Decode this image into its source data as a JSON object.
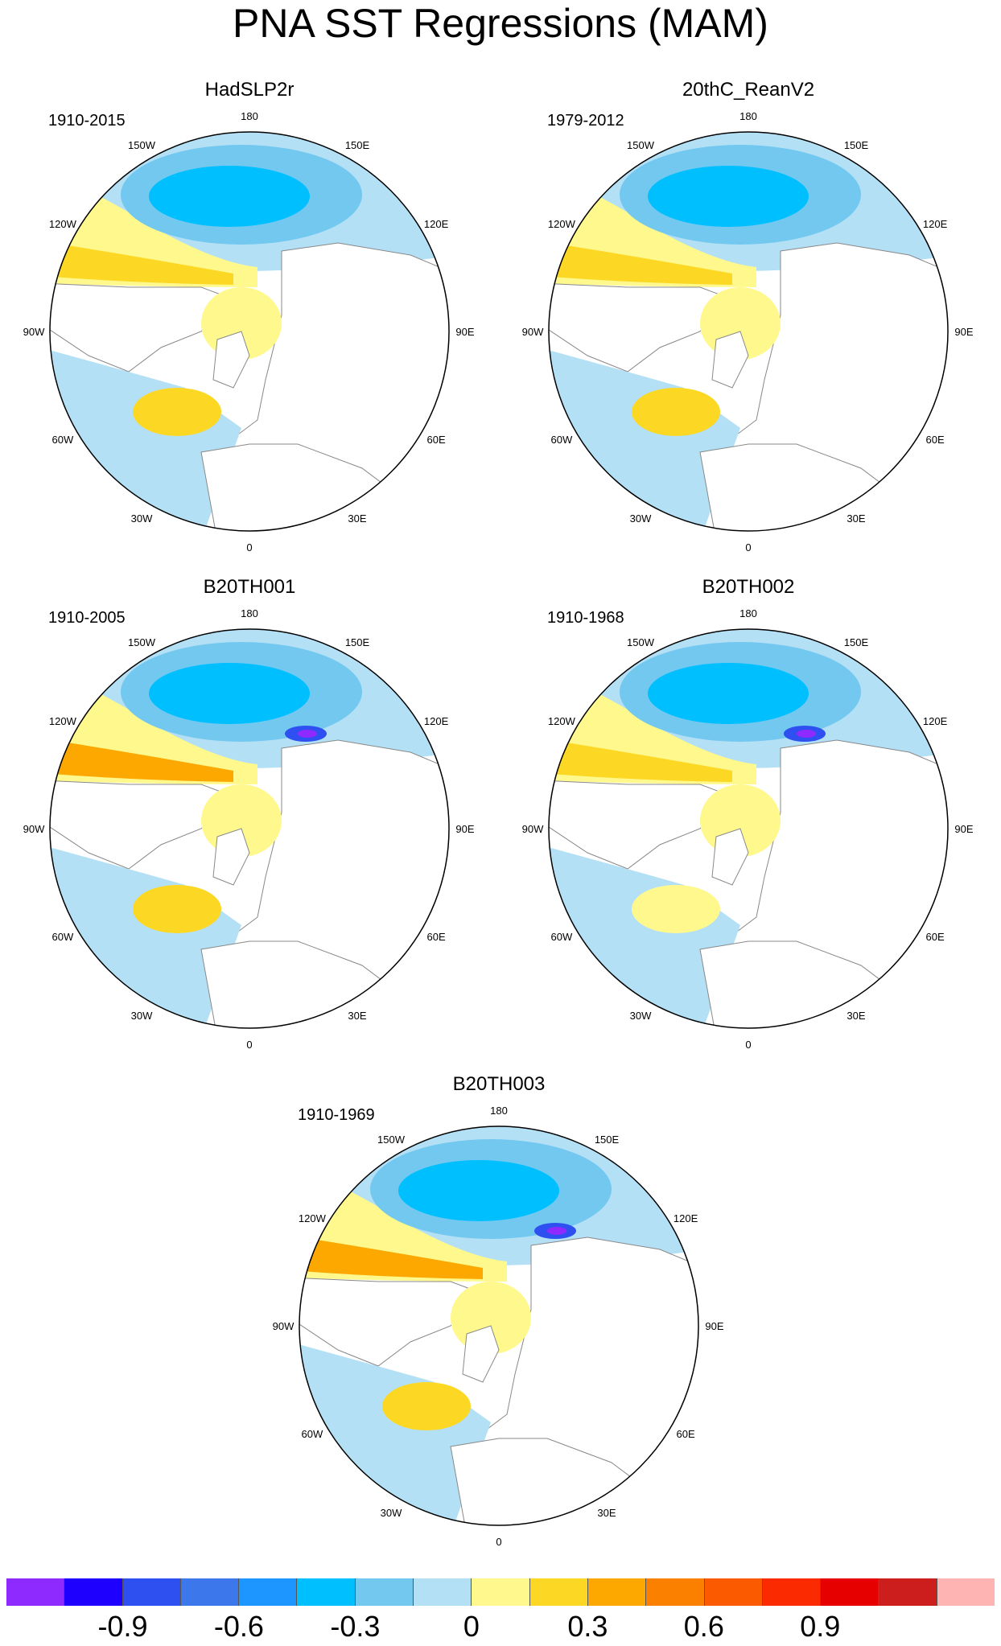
{
  "title": "PNA SST Regressions (MAM)",
  "lon_labels": [
    "180",
    "150E",
    "120E",
    "90E",
    "60E",
    "30E",
    "0",
    "30W",
    "60W",
    "90W",
    "120W",
    "150W"
  ],
  "panels": [
    {
      "id": "hadslp2r",
      "title": "HadSLP2r",
      "period": "1910-2015",
      "pacific_blue": "#00bfff",
      "pacific_max": 0.4,
      "northam_warm": "#fcd824",
      "atlantic_warm": "#fcd824"
    },
    {
      "id": "20thc",
      "title": "20thC_ReanV2",
      "period": "1979-2012",
      "pacific_blue": "#00bfff",
      "pacific_max": 0.4,
      "northam_warm": "#fcd824",
      "atlantic_warm": "#fcd824"
    },
    {
      "id": "b20th001",
      "title": "B20TH001",
      "period": "1910-2005",
      "pacific_blue": "#00bfff",
      "pacific_max": 0.9,
      "northam_warm": "#fca800",
      "atlantic_warm": "#fcd824"
    },
    {
      "id": "b20th002",
      "title": "B20TH002",
      "period": "1910-1968",
      "pacific_blue": "#00bfff",
      "pacific_max": 0.7,
      "northam_warm": "#fcd824",
      "atlantic_warm": "#fff88c"
    },
    {
      "id": "b20th003",
      "title": "B20TH003",
      "period": "1910-1969",
      "pacific_blue": "#00bfff",
      "pacific_max": 0.8,
      "northam_warm": "#fca800",
      "atlantic_warm": "#fcd824"
    }
  ],
  "colorbar": {
    "colors": [
      "#8f2aff",
      "#1e00ff",
      "#2e50f0",
      "#3c78ec",
      "#1e96ff",
      "#00bfff",
      "#73c8f0",
      "#b4e0f5",
      "#fff88c",
      "#fcd824",
      "#fca800",
      "#fc8000",
      "#fc5a00",
      "#fc2a00",
      "#e60000",
      "#cd1e1e",
      "#ffb4b4"
    ],
    "labels": [
      "-0.9",
      "-0.6",
      "-0.3",
      "0",
      "0.3",
      "0.6",
      "0.9"
    ]
  }
}
